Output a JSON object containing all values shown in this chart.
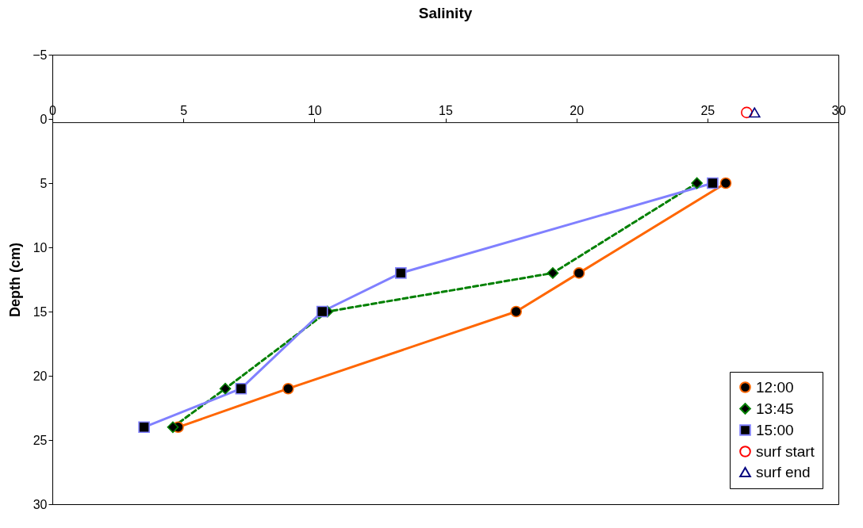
{
  "chart_data": {
    "type": "line",
    "title": "Salinity",
    "ylabel": "Depth (cm)",
    "xlim": [
      0,
      30
    ],
    "xticks": [
      0,
      5,
      10,
      15,
      20,
      25,
      30
    ],
    "ylim": [
      30,
      -5
    ],
    "yticks": [
      -5,
      0,
      5,
      10,
      15,
      20,
      25,
      30
    ],
    "grid": false,
    "legend": "bottom right",
    "series": [
      {
        "name": "12:00",
        "color": "#ff6600",
        "marker": "circle",
        "line_style": "solid",
        "x": [
          25.7,
          20.1,
          17.7,
          9.0,
          4.8
        ],
        "values": [
          5,
          12,
          15,
          21,
          24
        ]
      },
      {
        "name": "13:45",
        "color": "#008000",
        "marker": "diamond",
        "line_style": "dashed",
        "x": [
          24.6,
          19.1,
          10.5,
          6.6,
          4.6
        ],
        "values": [
          5,
          12,
          15,
          21,
          24
        ]
      },
      {
        "name": "15:00",
        "color": "#8080ff",
        "marker": "square",
        "line_style": "solid",
        "x": [
          25.2,
          13.3,
          10.3,
          7.2,
          3.5
        ],
        "values": [
          5,
          12,
          15,
          21,
          24
        ]
      },
      {
        "name": "surf start",
        "type": "scatter",
        "color": "#ff0000",
        "marker": "circle",
        "x": [
          26.5
        ],
        "values": [
          -0.5
        ]
      },
      {
        "name": "surf end",
        "type": "scatter",
        "color": "#000080",
        "marker": "triangle",
        "x": [
          26.8
        ],
        "values": [
          -0.5
        ]
      }
    ]
  }
}
